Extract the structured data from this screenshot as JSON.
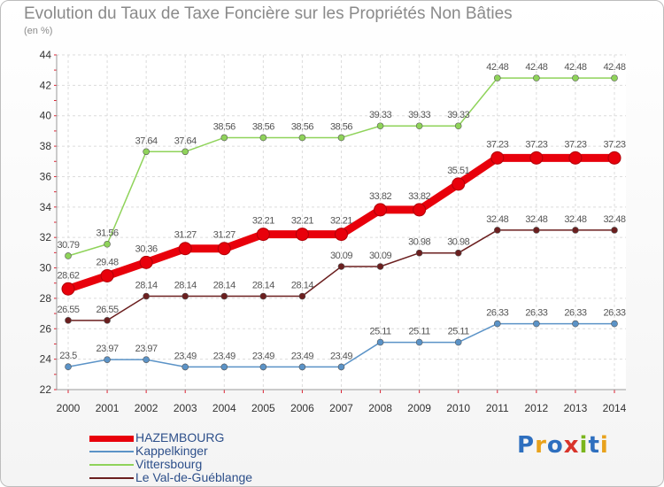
{
  "header": {
    "title": "Evolution du Taux de Taxe Foncière sur les Propriétés Non Bâties",
    "subtitle": "(en %)"
  },
  "logo": {
    "text": "Proxiti",
    "letters": [
      {
        "ch": "P",
        "color": "#2e6fbf"
      },
      {
        "ch": "r",
        "color": "#e8a21c"
      },
      {
        "ch": "o",
        "color": "#2e6fbf"
      },
      {
        "ch": "x",
        "color": "#d9342b"
      },
      {
        "ch": "i",
        "color": "#7ab51d"
      },
      {
        "ch": "t",
        "color": "#2e6fbf"
      },
      {
        "ch": "i",
        "color": "#e8a21c"
      }
    ]
  },
  "chart_data": {
    "type": "line",
    "title": "Evolution du Taux de Taxe Foncière sur les Propriétés Non Bâties",
    "subtitle": "(en %)",
    "x": [
      "2000",
      "2001",
      "2002",
      "2003",
      "2004",
      "2005",
      "2006",
      "2007",
      "2008",
      "2009",
      "2010",
      "2011",
      "2012",
      "2013",
      "2014"
    ],
    "ylim": [
      22,
      44
    ],
    "yticks": [
      22,
      24,
      26,
      28,
      30,
      32,
      34,
      36,
      38,
      40,
      42,
      44
    ],
    "grid": true,
    "legend_position": "bottom-left",
    "series": [
      {
        "name": "HAZEMBOURG",
        "color": "#e8000b",
        "emphasis": true,
        "values": [
          28.62,
          29.48,
          30.36,
          31.27,
          31.27,
          32.21,
          32.21,
          32.21,
          33.82,
          33.82,
          35.51,
          37.23,
          37.23,
          37.23,
          37.23
        ],
        "labels": [
          "28.62",
          "29.48",
          "30.36",
          "31.27",
          "31.27",
          "32.21",
          "32.21",
          "32.21",
          "33.82",
          "33.82",
          "35.51",
          "37.23",
          "37.23",
          "37.23",
          "37.23"
        ]
      },
      {
        "name": "Kappelkinger",
        "color": "#5b93c7",
        "values": [
          23.5,
          23.97,
          23.97,
          23.49,
          23.49,
          23.49,
          23.49,
          23.49,
          25.11,
          25.11,
          25.11,
          26.33,
          26.33,
          26.33,
          26.33
        ],
        "labels": [
          "23.5",
          "23.97",
          "23.97",
          "23.49",
          "23.49",
          "23.49",
          "23.49",
          "23.49",
          "25.11",
          "25.11",
          "25.11",
          "26.33",
          "26.33",
          "26.33",
          "26.33"
        ]
      },
      {
        "name": "Vittersbourg",
        "color": "#8fd35a",
        "values": [
          30.79,
          31.56,
          37.64,
          37.64,
          38.56,
          38.56,
          38.56,
          38.56,
          39.33,
          39.33,
          39.33,
          42.48,
          42.48,
          42.48,
          42.48
        ],
        "labels": [
          "30.79",
          "31.56",
          "37.64",
          "37.64",
          "38.56",
          "38.56",
          "38.56",
          "38.56",
          "39.33",
          "39.33",
          "39.33",
          "42.48",
          "42.48",
          "42.48",
          "42.48"
        ]
      },
      {
        "name": "Le Val-de-Guéblange",
        "color": "#6b1f1f",
        "values": [
          26.55,
          26.55,
          28.14,
          28.14,
          28.14,
          28.14,
          28.14,
          30.09,
          30.09,
          30.98,
          30.98,
          32.48,
          32.48,
          32.48,
          32.48
        ],
        "labels": [
          "26.55",
          "26.55",
          "28.14",
          "28.14",
          "28.14",
          "28.14",
          "28.14",
          "30.09",
          "30.09",
          "30.98",
          "30.98",
          "32.48",
          "32.48",
          "32.48",
          "32.48"
        ]
      }
    ]
  }
}
